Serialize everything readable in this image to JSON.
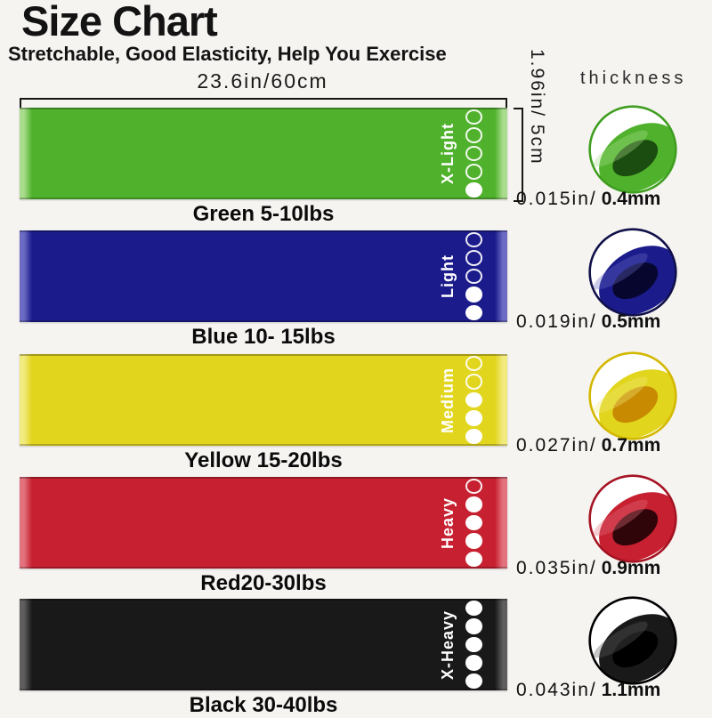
{
  "page": {
    "background": "#F6F4F1"
  },
  "header": {
    "title": "Size Chart",
    "subtitle": "Stretchable, Good Elasticity, Help You Exercise"
  },
  "dimensions": {
    "length_label": "23.6in/60cm",
    "width_label": "1.96in/ 5cm",
    "thickness_header": "thickness"
  },
  "bands": [
    {
      "name": "green",
      "strength_label": "X-Light",
      "caption": "Green 5-10lbs",
      "thickness_in": "0.015in/",
      "thickness_mm": "0.4mm",
      "dots_filled": 1,
      "colors": {
        "band": "#50B22C",
        "light": "#A9DC8C",
        "ring": "#3F9E20",
        "hole": "#1C4D10"
      }
    },
    {
      "name": "blue",
      "strength_label": "Light",
      "caption": "Blue 10- 15lbs",
      "thickness_in": "0.019in/",
      "thickness_mm": "0.5mm",
      "dots_filled": 2,
      "colors": {
        "band": "#1B1B8C",
        "light": "#6B6BC4",
        "ring": "#10104A",
        "hole": "#06062E"
      }
    },
    {
      "name": "yellow",
      "strength_label": "Medium",
      "caption": "Yellow 15-20lbs",
      "thickness_in": "0.027in/",
      "thickness_mm": "0.7mm",
      "dots_filled": 3,
      "colors": {
        "band": "#E2D51D",
        "light": "#F1EA7E",
        "ring": "#D3B800",
        "hole": "#C88A00"
      }
    },
    {
      "name": "red",
      "strength_label": "Heavy",
      "caption": "Red20-30lbs",
      "thickness_in": "0.035in/",
      "thickness_mm": "0.9mm",
      "dots_filled": 4,
      "colors": {
        "band": "#C72030",
        "light": "#E2737E",
        "ring": "#A51322",
        "hole": "#30050A"
      }
    },
    {
      "name": "black",
      "strength_label": "X-Heavy",
      "caption": "Black 30-40lbs",
      "thickness_in": "0.043in/",
      "thickness_mm": "1.1mm",
      "dots_filled": 5,
      "colors": {
        "band": "#191919",
        "light": "#5E5E5E",
        "ring": "#000000",
        "hole": "#000000"
      }
    }
  ]
}
